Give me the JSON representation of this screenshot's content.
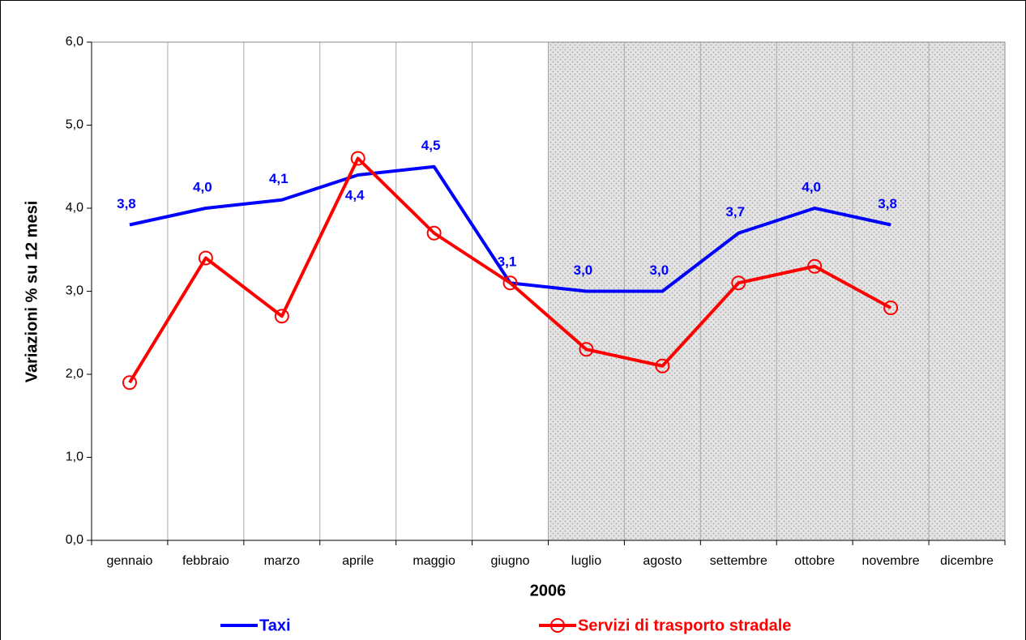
{
  "chart_data": {
    "type": "line",
    "y_label": "Variazioni % su 12 mesi",
    "x_label": "2006",
    "categories": [
      "gennaio",
      "febbraio",
      "marzo",
      "aprile",
      "maggio",
      "giugno",
      "luglio",
      "agosto",
      "settembre",
      "ottobre",
      "novembre",
      "dicembre"
    ],
    "shaded_from": "luglio",
    "series": [
      {
        "name": "Taxi",
        "color": "#0000ff",
        "marker": false,
        "values": [
          3.8,
          4.0,
          4.1,
          4.4,
          4.5,
          3.1,
          3.0,
          3.0,
          3.7,
          4.0,
          3.8,
          null
        ],
        "value_labels": [
          "3,8",
          "4,0",
          "4,1",
          "4,4",
          "4,5",
          "3,1",
          "3,0",
          "3,0",
          "3,7",
          "4,0",
          "3,8",
          null
        ]
      },
      {
        "name": "Servizi di trasporto stradale",
        "color": "#ff0000",
        "marker": true,
        "values": [
          1.9,
          3.4,
          2.7,
          4.6,
          3.7,
          3.1,
          2.3,
          2.1,
          3.1,
          3.3,
          2.8,
          null
        ]
      }
    ],
    "ylim": [
      0,
      6
    ],
    "yticks": [
      {
        "value": 0,
        "label": "0,0"
      },
      {
        "value": 1,
        "label": "1,0"
      },
      {
        "value": 2,
        "label": "2,0"
      },
      {
        "value": 3,
        "label": "3,0"
      },
      {
        "value": 4,
        "label": "4,0"
      },
      {
        "value": 5,
        "label": "5,0"
      },
      {
        "value": 6,
        "label": "6,0"
      }
    ],
    "grid": true
  }
}
